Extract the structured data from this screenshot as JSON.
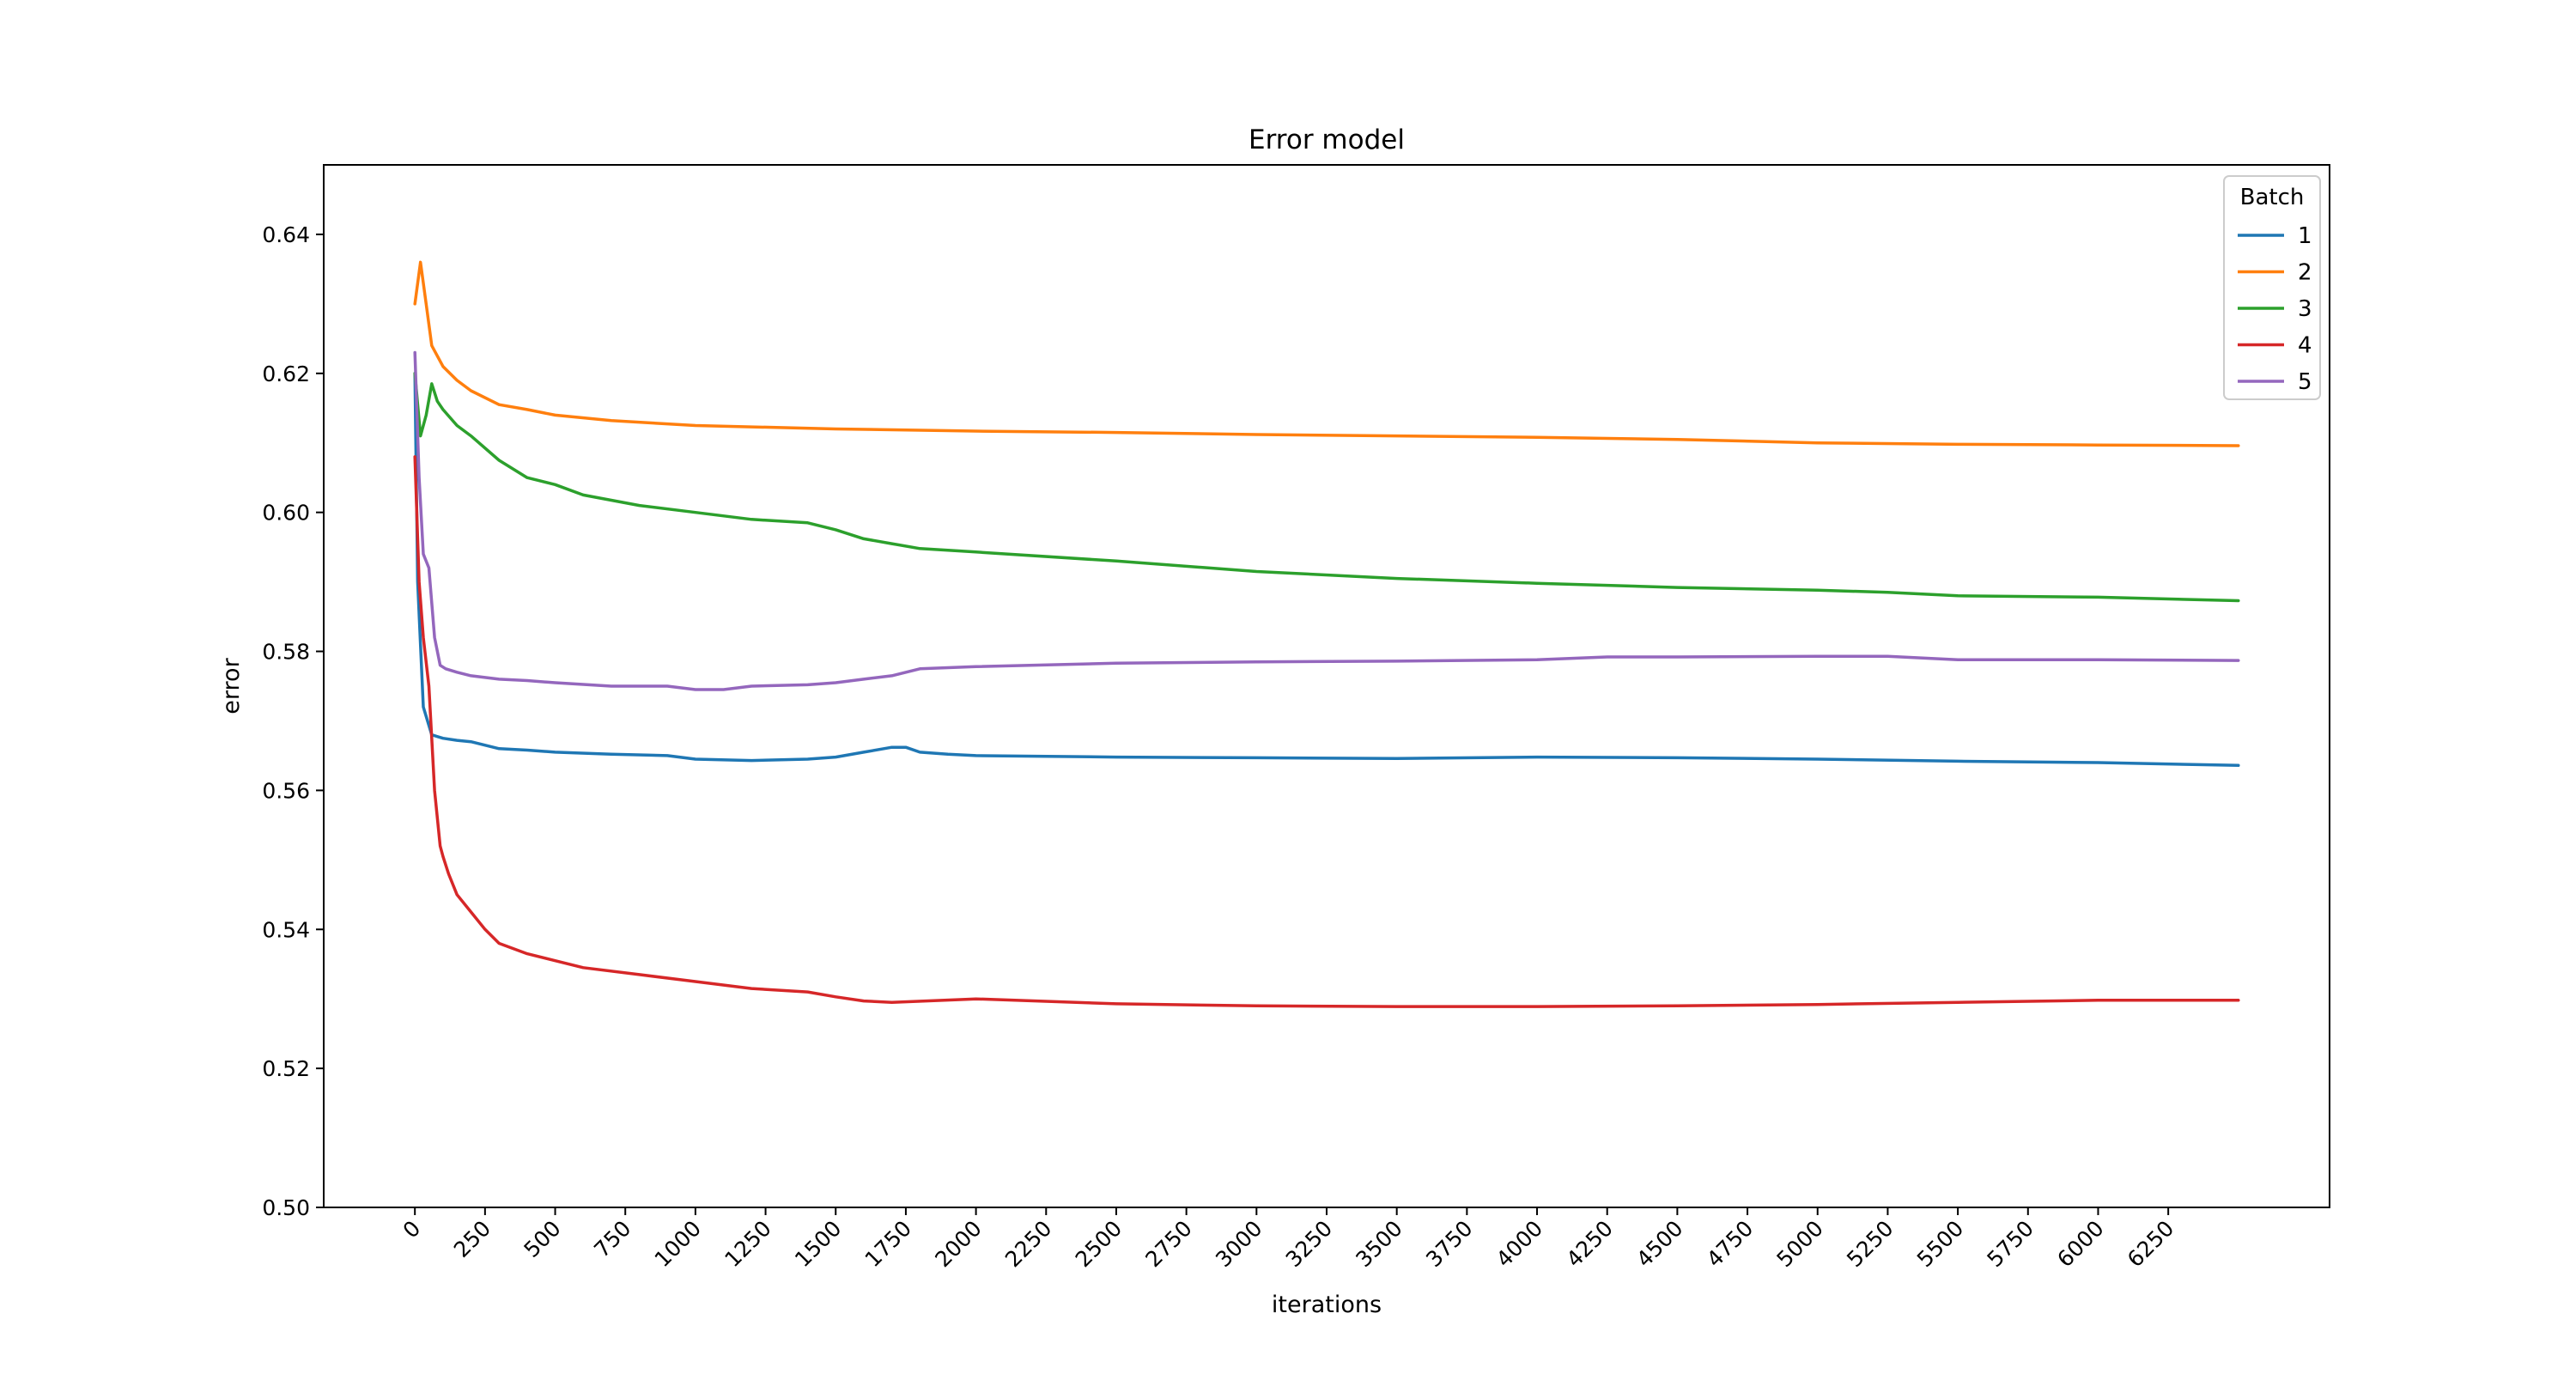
{
  "chart_data": {
    "type": "line",
    "title": "Error model",
    "xlabel": "iterations",
    "ylabel": "error",
    "xlim": [
      -325,
      6825
    ],
    "ylim": [
      0.5,
      0.65
    ],
    "xticks": [
      0,
      250,
      500,
      750,
      1000,
      1250,
      1500,
      1750,
      2000,
      2250,
      2500,
      2750,
      3000,
      3250,
      3500,
      3750,
      4000,
      4250,
      4500,
      4750,
      5000,
      5250,
      5500,
      5750,
      6000,
      6250
    ],
    "yticks": [
      0.5,
      0.52,
      0.54,
      0.56,
      0.58,
      0.6,
      0.62,
      0.64
    ],
    "grid": false,
    "legend": {
      "title": "Batch",
      "position": "top-right"
    },
    "series": [
      {
        "name": "1",
        "color": "#1f77b4",
        "x": [
          0,
          10,
          30,
          60,
          100,
          150,
          200,
          300,
          400,
          500,
          700,
          900,
          1000,
          1200,
          1400,
          1500,
          1600,
          1700,
          1750,
          1800,
          1900,
          2000,
          2500,
          3000,
          3500,
          4000,
          4500,
          5000,
          5500,
          6000,
          6500
        ],
        "y": [
          0.62,
          0.59,
          0.572,
          0.568,
          0.5675,
          0.5672,
          0.567,
          0.566,
          0.5658,
          0.5655,
          0.5652,
          0.565,
          0.5645,
          0.5643,
          0.5645,
          0.5648,
          0.5655,
          0.5662,
          0.5662,
          0.5655,
          0.5652,
          0.565,
          0.5648,
          0.5647,
          0.5646,
          0.5648,
          0.5647,
          0.5645,
          0.5642,
          0.564,
          0.5636
        ]
      },
      {
        "name": "2",
        "color": "#ff7f0e",
        "x": [
          0,
          20,
          40,
          60,
          100,
          150,
          200,
          300,
          400,
          500,
          700,
          1000,
          1500,
          2000,
          2500,
          3000,
          3500,
          4000,
          4500,
          5000,
          5500,
          6000,
          6500
        ],
        "y": [
          0.63,
          0.636,
          0.63,
          0.624,
          0.621,
          0.619,
          0.6175,
          0.6155,
          0.6148,
          0.614,
          0.6132,
          0.6125,
          0.612,
          0.6117,
          0.6115,
          0.6112,
          0.611,
          0.6108,
          0.6105,
          0.61,
          0.6098,
          0.6097,
          0.6096
        ]
      },
      {
        "name": "3",
        "color": "#2ca02c",
        "x": [
          0,
          20,
          40,
          60,
          80,
          100,
          150,
          200,
          300,
          400,
          500,
          600,
          800,
          1000,
          1200,
          1400,
          1500,
          1600,
          1700,
          1800,
          2000,
          2500,
          3000,
          3500,
          4000,
          4500,
          5000,
          5250,
          5500,
          6000,
          6500
        ],
        "y": [
          0.62,
          0.611,
          0.614,
          0.6185,
          0.616,
          0.6148,
          0.6125,
          0.611,
          0.6075,
          0.605,
          0.604,
          0.6025,
          0.601,
          0.6,
          0.599,
          0.5985,
          0.5975,
          0.5962,
          0.5955,
          0.5948,
          0.5943,
          0.593,
          0.5915,
          0.5905,
          0.5898,
          0.5892,
          0.5888,
          0.5885,
          0.588,
          0.5878,
          0.5873
        ]
      },
      {
        "name": "4",
        "color": "#d62728",
        "x": [
          0,
          15,
          30,
          50,
          70,
          90,
          100,
          120,
          150,
          200,
          250,
          300,
          400,
          500,
          600,
          800,
          1000,
          1200,
          1400,
          1500,
          1600,
          1700,
          2000,
          2500,
          3000,
          3500,
          4000,
          4500,
          5000,
          5500,
          6000,
          6500
        ],
        "y": [
          0.608,
          0.59,
          0.582,
          0.575,
          0.56,
          0.552,
          0.5505,
          0.548,
          0.545,
          0.5425,
          0.54,
          0.538,
          0.5365,
          0.5355,
          0.5345,
          0.5335,
          0.5325,
          0.5315,
          0.531,
          0.5303,
          0.5297,
          0.5295,
          0.53,
          0.5293,
          0.529,
          0.5289,
          0.5289,
          0.529,
          0.5292,
          0.5295,
          0.5298,
          0.5298
        ]
      },
      {
        "name": "5",
        "color": "#9467bd",
        "x": [
          0,
          15,
          30,
          50,
          70,
          90,
          110,
          150,
          200,
          300,
          400,
          500,
          700,
          900,
          1000,
          1100,
          1200,
          1400,
          1500,
          1600,
          1700,
          1800,
          2000,
          2500,
          3000,
          3500,
          4000,
          4250,
          4500,
          5000,
          5250,
          5500,
          6000,
          6500
        ],
        "y": [
          0.623,
          0.605,
          0.594,
          0.592,
          0.582,
          0.578,
          0.5775,
          0.577,
          0.5765,
          0.576,
          0.5758,
          0.5755,
          0.575,
          0.575,
          0.5745,
          0.5745,
          0.575,
          0.5752,
          0.5755,
          0.576,
          0.5765,
          0.5775,
          0.5778,
          0.5783,
          0.5785,
          0.5786,
          0.5788,
          0.5792,
          0.5792,
          0.5793,
          0.5793,
          0.5788,
          0.5788,
          0.5787
        ]
      }
    ]
  }
}
